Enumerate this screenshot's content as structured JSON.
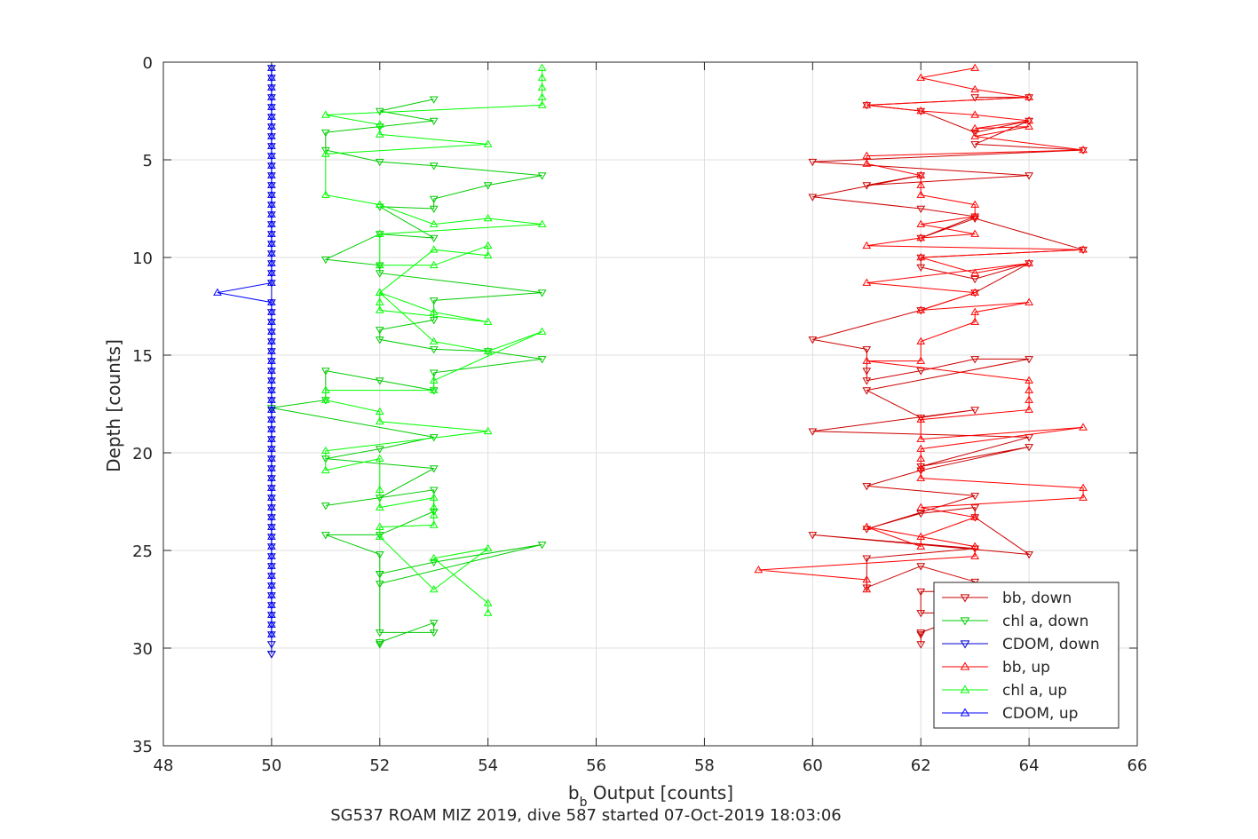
{
  "chart_data": {
    "type": "line",
    "title": "SG537 ROAM MIZ 2019, dive 587 started 07-Oct-2019 18:03:06",
    "xlabel_main": "b",
    "xlabel_sub": "b",
    "xlabel_rest": " Output [counts]",
    "ylabel": "Depth [counts]",
    "xlim": [
      48,
      66
    ],
    "ylim": [
      0,
      35
    ],
    "y_reversed": true,
    "grid": true,
    "legend_position": "lower-right",
    "xticks": [
      "48",
      "50",
      "52",
      "54",
      "56",
      "58",
      "60",
      "62",
      "64",
      "66"
    ],
    "yticks": [
      "0",
      "5",
      "10",
      "15",
      "20",
      "25",
      "30",
      "35"
    ],
    "series": [
      {
        "name": "bb, down",
        "color": "#cc0000",
        "marker": "triangle-down",
        "x": [
          63,
          64,
          61,
          62,
          63,
          64,
          63,
          65,
          60,
          64,
          61,
          62,
          60,
          62,
          63,
          62,
          63,
          65,
          62,
          62,
          63,
          64,
          63,
          62,
          60,
          61,
          61,
          61,
          62,
          63,
          64,
          61,
          62,
          63,
          60,
          64,
          62,
          64,
          62,
          61,
          63,
          61,
          62,
          63,
          63,
          64,
          60,
          63,
          61,
          61,
          62,
          63,
          63,
          62,
          62,
          63,
          62,
          62,
          62
        ],
        "y": [
          1.8,
          1.8,
          2.2,
          2.5,
          3.6,
          3.0,
          4.2,
          4.5,
          5.1,
          5.8,
          6.3,
          5.8,
          6.9,
          7.5,
          7.9,
          9.0,
          8.0,
          9.6,
          10.0,
          10.5,
          11.1,
          10.3,
          11.8,
          12.7,
          14.2,
          14.7,
          15.8,
          16.3,
          15.8,
          15.2,
          15.2,
          16.8,
          18.2,
          17.8,
          18.9,
          19.2,
          20.7,
          19.7,
          20.9,
          21.7,
          22.2,
          23.9,
          23.1,
          22.8,
          23.3,
          25.2,
          24.2,
          24.9,
          25.4,
          26.9,
          25.8,
          26.6,
          27.1,
          27.1,
          28.2,
          28.2,
          29.2,
          29.8,
          29.3
        ]
      },
      {
        "name": "chl a, down",
        "color": "#00cc00",
        "marker": "triangle-down",
        "x": [
          53,
          52,
          53,
          52,
          51,
          51,
          52,
          53,
          55,
          54,
          53,
          53,
          52,
          53,
          52,
          51,
          52,
          52,
          55,
          53,
          53,
          52,
          52,
          53,
          54,
          55,
          53,
          53,
          52,
          51,
          51,
          50,
          53,
          52,
          51,
          53,
          52,
          51,
          53,
          53,
          52,
          51,
          52,
          52,
          52,
          55,
          53,
          52,
          52,
          53,
          53,
          52,
          52
        ],
        "y": [
          1.9,
          2.5,
          3.0,
          3.3,
          3.6,
          4.5,
          5.1,
          5.3,
          5.8,
          6.3,
          7.0,
          7.5,
          7.4,
          9.0,
          8.8,
          10.1,
          10.4,
          10.8,
          11.8,
          12.2,
          13.2,
          13.7,
          14.2,
          14.7,
          14.8,
          15.2,
          15.9,
          16.8,
          16.3,
          15.8,
          17.3,
          17.7,
          19.2,
          19.8,
          20.3,
          20.8,
          22.3,
          22.7,
          21.9,
          23.0,
          24.2,
          24.2,
          25.2,
          26.2,
          26.7,
          24.7,
          25.6,
          26.2,
          29.2,
          29.2,
          28.7,
          29.7,
          29.8
        ]
      },
      {
        "name": "CDOM, down",
        "color": "#0000cc",
        "marker": "triangle-down",
        "x": [
          50,
          50,
          50,
          50,
          50,
          50,
          50,
          50,
          50,
          50,
          50,
          50,
          50,
          50,
          50,
          50,
          50,
          50,
          50,
          50,
          50,
          50,
          50,
          50,
          50,
          50,
          50,
          50,
          50,
          50,
          50,
          50,
          50,
          50,
          50,
          50,
          50,
          50,
          50,
          50,
          50,
          50,
          50,
          50,
          50,
          50,
          50,
          50,
          50,
          50,
          50,
          50,
          50,
          50,
          50,
          50,
          50,
          50,
          50,
          50,
          50
        ],
        "y": [
          0.3,
          0.8,
          1.3,
          1.8,
          2.3,
          2.8,
          3.3,
          3.8,
          4.3,
          4.8,
          5.3,
          5.8,
          6.3,
          6.8,
          7.3,
          7.8,
          8.3,
          8.8,
          9.3,
          9.8,
          10.3,
          10.8,
          11.3,
          12.3,
          12.8,
          13.3,
          13.8,
          14.3,
          14.8,
          15.3,
          15.8,
          16.3,
          16.8,
          17.3,
          17.8,
          18.3,
          18.8,
          19.3,
          19.8,
          20.3,
          20.8,
          21.3,
          21.8,
          22.3,
          22.8,
          23.3,
          23.8,
          24.3,
          24.8,
          25.3,
          25.8,
          26.3,
          26.8,
          27.3,
          27.8,
          28.3,
          28.8,
          29.3,
          29.8,
          30.3,
          30.3
        ]
      },
      {
        "name": "bb, up",
        "color": "#ff0000",
        "marker": "triangle-up",
        "x": [
          63,
          62,
          63,
          64,
          61,
          62,
          63,
          64,
          63,
          64,
          63,
          65,
          61,
          61,
          62,
          62,
          62,
          63,
          63,
          62,
          63,
          62,
          61,
          65,
          62,
          63,
          64,
          61,
          63,
          62,
          64,
          63,
          63,
          62,
          62,
          61,
          64,
          64,
          64,
          64,
          62,
          62,
          65,
          62,
          62,
          62,
          62,
          65,
          65,
          62,
          63,
          62,
          62,
          61,
          63,
          63,
          59,
          61,
          61
        ],
        "y": [
          0.3,
          0.8,
          1.4,
          1.8,
          2.2,
          2.5,
          2.7,
          3.0,
          3.4,
          3.3,
          3.8,
          4.5,
          4.8,
          5.2,
          5.8,
          6.3,
          6.8,
          7.3,
          7.9,
          8.3,
          8.8,
          9.0,
          9.4,
          9.6,
          10.0,
          10.8,
          10.3,
          11.3,
          11.8,
          12.7,
          12.3,
          12.8,
          13.3,
          14.3,
          15.3,
          15.3,
          16.3,
          16.8,
          17.3,
          17.8,
          18.3,
          19.3,
          18.7,
          19.8,
          20.3,
          20.8,
          21.3,
          21.8,
          22.3,
          22.8,
          23.3,
          24.3,
          24.8,
          23.8,
          24.8,
          25.3,
          26.0,
          26.5,
          27.0
        ]
      },
      {
        "name": "chl a, up",
        "color": "#00ff00",
        "marker": "triangle-up",
        "x": [
          55,
          55,
          55,
          55,
          55,
          51,
          52,
          52,
          54,
          51,
          51,
          52,
          53,
          54,
          55,
          52,
          52,
          53,
          54,
          54,
          53,
          52,
          53,
          54,
          52,
          52,
          52,
          53,
          54,
          55,
          53,
          53,
          51,
          51,
          52,
          52,
          54,
          51,
          51,
          52,
          52,
          52,
          53,
          53,
          53,
          53,
          52,
          52,
          53,
          54,
          53,
          54,
          54
        ],
        "y": [
          0.3,
          0.8,
          1.3,
          1.8,
          2.2,
          2.7,
          3.2,
          3.7,
          4.2,
          4.7,
          6.8,
          7.3,
          8.3,
          8.0,
          8.3,
          8.8,
          10.4,
          10.4,
          9.4,
          9.9,
          9.6,
          11.8,
          12.8,
          13.3,
          12.7,
          12.3,
          11.8,
          14.3,
          14.8,
          13.8,
          16.3,
          16.8,
          16.8,
          17.3,
          17.9,
          18.4,
          18.9,
          19.9,
          20.9,
          20.3,
          21.9,
          22.8,
          22.3,
          22.8,
          23.2,
          23.7,
          23.8,
          24.3,
          27.0,
          24.9,
          25.4,
          27.7,
          28.2
        ]
      },
      {
        "name": "CDOM, up",
        "color": "#0000ff",
        "marker": "triangle-up",
        "x": [
          50,
          50,
          50,
          50,
          50,
          50,
          50,
          50,
          50,
          50,
          50,
          50,
          50,
          50,
          50,
          50,
          50,
          50,
          50,
          50,
          50,
          50,
          50,
          49,
          50,
          50,
          50,
          50,
          50,
          50,
          50,
          50,
          50,
          50,
          50,
          50,
          50,
          50,
          50,
          50,
          50,
          50,
          50,
          50,
          50,
          50,
          50,
          50,
          50,
          50,
          50,
          50,
          50,
          50,
          50,
          50,
          50,
          50,
          50
        ],
        "y": [
          0.3,
          0.8,
          1.3,
          1.8,
          2.3,
          2.8,
          3.3,
          3.8,
          4.3,
          4.8,
          5.3,
          5.8,
          6.3,
          6.8,
          7.3,
          7.8,
          8.3,
          8.8,
          9.3,
          9.8,
          10.3,
          10.8,
          11.3,
          11.8,
          12.3,
          12.8,
          13.3,
          13.8,
          14.3,
          14.8,
          15.3,
          15.8,
          16.3,
          16.8,
          17.3,
          17.8,
          18.3,
          18.8,
          19.3,
          19.8,
          20.3,
          20.8,
          21.3,
          21.8,
          22.3,
          22.8,
          23.3,
          23.8,
          24.3,
          24.8,
          25.3,
          25.8,
          26.3,
          26.8,
          27.3,
          27.8,
          28.3,
          28.8,
          29.3
        ]
      }
    ]
  }
}
